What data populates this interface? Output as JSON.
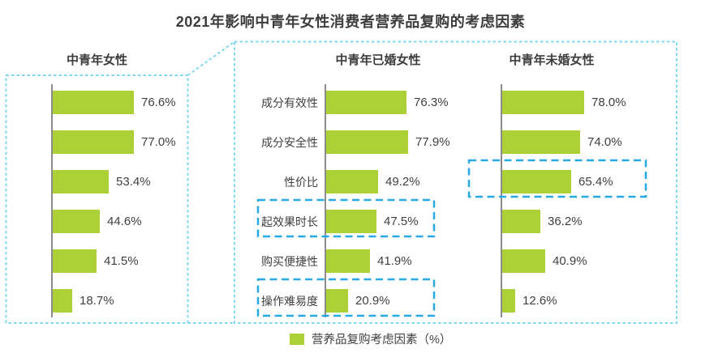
{
  "title": "2021年影响中青年女性消费者营养品复购的考虑因素",
  "legend": {
    "label": "营养品复购考虑因素（%）"
  },
  "colors": {
    "bar": "#abd136",
    "callout_border": "#7fd9f0",
    "highlight_border": "#29a9e1",
    "axis": "#8c8c8c",
    "text": "#404040"
  },
  "chart_data": {
    "type": "bar",
    "orientation": "horizontal",
    "title": "2021年影响中青年女性消费者营养品复购的考虑因素",
    "unit": "%",
    "xlim": [
      0,
      100
    ],
    "grid": false,
    "legend_position": "bottom",
    "legend_label": "营养品复购考虑因素（%）",
    "categories": [
      "成分有效性",
      "成分安全性",
      "性价比",
      "起效果时长",
      "购买便捷性",
      "操作难易度"
    ],
    "series": [
      {
        "name": "中青年女性",
        "values": [
          76.6,
          77.0,
          53.4,
          44.6,
          41.5,
          18.7
        ],
        "show_category_labels": false,
        "highlighted_categories": []
      },
      {
        "name": "中青年已婚女性",
        "values": [
          76.3,
          77.9,
          49.2,
          47.5,
          41.9,
          20.9
        ],
        "show_category_labels": true,
        "highlighted_categories": [
          "起效果时长",
          "操作难易度"
        ]
      },
      {
        "name": "中青年未婚女性",
        "values": [
          78.0,
          74.0,
          65.4,
          36.2,
          40.9,
          12.6
        ],
        "show_category_labels": false,
        "highlighted_categories": [
          "性价比"
        ]
      }
    ]
  }
}
